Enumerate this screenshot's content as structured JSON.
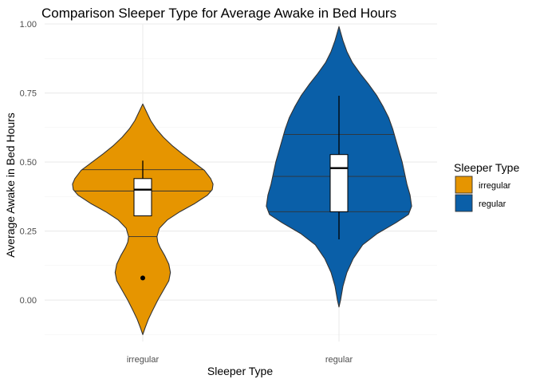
{
  "chart_data": {
    "type": "violin",
    "title": "Comparison Sleeper Type for Average Awake in Bed Hours",
    "xlabel": "Sleeper Type",
    "ylabel": "Average Awake in Bed Hours",
    "categories": [
      "irregular",
      "regular"
    ],
    "ylim": [
      -0.15,
      1.0
    ],
    "yticks": [
      0.0,
      0.25,
      0.5,
      0.75,
      1.0
    ],
    "ytick_labels": [
      "0.00",
      "0.25",
      "0.50",
      "0.75",
      "1.00"
    ],
    "grid": true,
    "legend": {
      "title": "Sleeper Type",
      "position": "right",
      "entries": [
        {
          "label": "irregular",
          "color": "#E69500"
        },
        {
          "label": "regular",
          "color": "#0A5FA8"
        }
      ]
    },
    "series": [
      {
        "category": "irregular",
        "color": "#E69500",
        "range": [
          -0.125,
          0.71
        ],
        "density": [
          [
            -0.125,
            0.0
          ],
          [
            -0.1,
            0.03
          ],
          [
            -0.07,
            0.07
          ],
          [
            -0.04,
            0.12
          ],
          [
            0.0,
            0.19
          ],
          [
            0.04,
            0.27
          ],
          [
            0.07,
            0.33
          ],
          [
            0.1,
            0.35
          ],
          [
            0.13,
            0.33
          ],
          [
            0.16,
            0.28
          ],
          [
            0.19,
            0.22
          ],
          [
            0.21,
            0.19
          ],
          [
            0.23,
            0.18
          ],
          [
            0.26,
            0.21
          ],
          [
            0.29,
            0.31
          ],
          [
            0.32,
            0.47
          ],
          [
            0.35,
            0.66
          ],
          [
            0.38,
            0.82
          ],
          [
            0.4,
            0.88
          ],
          [
            0.42,
            0.89
          ],
          [
            0.44,
            0.86
          ],
          [
            0.47,
            0.78
          ],
          [
            0.5,
            0.64
          ],
          [
            0.53,
            0.5
          ],
          [
            0.56,
            0.37
          ],
          [
            0.59,
            0.26
          ],
          [
            0.62,
            0.17
          ],
          [
            0.65,
            0.1
          ],
          [
            0.68,
            0.05
          ],
          [
            0.71,
            0.0
          ]
        ],
        "quantiles": [
          0.23,
          0.395,
          0.472
        ],
        "box": {
          "q1": 0.305,
          "median": 0.4,
          "q3": 0.44,
          "whisker_low": 0.305,
          "whisker_high": 0.505
        },
        "outliers": [
          0.08
        ]
      },
      {
        "category": "regular",
        "color": "#0A5FA8",
        "range": [
          -0.025,
          0.99
        ],
        "density": [
          [
            -0.025,
            0.0
          ],
          [
            0.0,
            0.02
          ],
          [
            0.05,
            0.05
          ],
          [
            0.1,
            0.1
          ],
          [
            0.15,
            0.18
          ],
          [
            0.2,
            0.3
          ],
          [
            0.24,
            0.48
          ],
          [
            0.28,
            0.72
          ],
          [
            0.31,
            0.88
          ],
          [
            0.34,
            0.92
          ],
          [
            0.38,
            0.9
          ],
          [
            0.42,
            0.86
          ],
          [
            0.46,
            0.83
          ],
          [
            0.5,
            0.8
          ],
          [
            0.54,
            0.76
          ],
          [
            0.58,
            0.72
          ],
          [
            0.62,
            0.68
          ],
          [
            0.66,
            0.63
          ],
          [
            0.7,
            0.56
          ],
          [
            0.74,
            0.48
          ],
          [
            0.78,
            0.38
          ],
          [
            0.82,
            0.27
          ],
          [
            0.86,
            0.17
          ],
          [
            0.9,
            0.1
          ],
          [
            0.94,
            0.05
          ],
          [
            0.97,
            0.02
          ],
          [
            0.99,
            0.0
          ]
        ],
        "quantiles": [
          0.32,
          0.448,
          0.6
        ],
        "box": {
          "q1": 0.32,
          "median": 0.478,
          "q3": 0.527,
          "whisker_low": 0.22,
          "whisker_high": 0.74
        },
        "outliers": []
      }
    ]
  }
}
